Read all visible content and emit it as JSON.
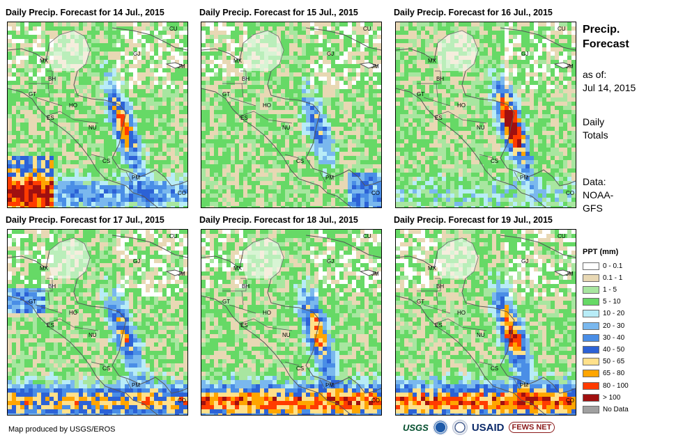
{
  "panels": [
    {
      "title": "Daily Precip. Forecast for 14 Jul., 2015"
    },
    {
      "title": "Daily Precip. Forecast for 15 Jul., 2015"
    },
    {
      "title": "Daily Precip. Forecast for 16 Jul., 2015"
    },
    {
      "title": "Daily Precip. Forecast for 17 Jul., 2015"
    },
    {
      "title": "Daily Precip. Forecast for 18 Jul., 2015"
    },
    {
      "title": "Daily Precip. Forecast for 19 Jul., 2015"
    }
  ],
  "country_labels": [
    "MX",
    "BH",
    "GT",
    "HO",
    "ES",
    "NU",
    "CS",
    "PM",
    "CU",
    "GJ",
    "JM",
    "CO"
  ],
  "side": {
    "title_line1": "Precip.",
    "title_line2": "Forecast",
    "asof_line1": "as of:",
    "asof_line2": "Jul 14, 2015",
    "daily_line1": "Daily",
    "daily_line2": "Totals",
    "data_line1": "Data:",
    "data_line2": "NOAA-",
    "data_line3": "GFS"
  },
  "legend": {
    "title": "PPT (mm)",
    "items": [
      {
        "label": "0 - 0.1",
        "color": "#ffffff"
      },
      {
        "label": "0.1 - 1",
        "color": "#e8d8b4"
      },
      {
        "label": "1 - 5",
        "color": "#a8e6a0"
      },
      {
        "label": "5 - 10",
        "color": "#66d966"
      },
      {
        "label": "10 - 20",
        "color": "#b8ecf7"
      },
      {
        "label": "20 - 30",
        "color": "#7ab8ee"
      },
      {
        "label": "30 - 40",
        "color": "#4a8ee6"
      },
      {
        "label": "40 - 50",
        "color": "#2c62d6"
      },
      {
        "label": "50 - 65",
        "color": "#ffe08a"
      },
      {
        "label": "65 - 80",
        "color": "#ffa500"
      },
      {
        "label": "80 - 100",
        "color": "#ff3b00"
      },
      {
        "label": "> 100",
        "color": "#a01010"
      },
      {
        "label": "No Data",
        "color": "#a0a0a0"
      }
    ]
  },
  "footer": {
    "credit": "Map produced by USGS/EROS"
  },
  "logos": {
    "usgs": "USGS",
    "usaid": "USAID",
    "fews": "FEWS NET"
  }
}
